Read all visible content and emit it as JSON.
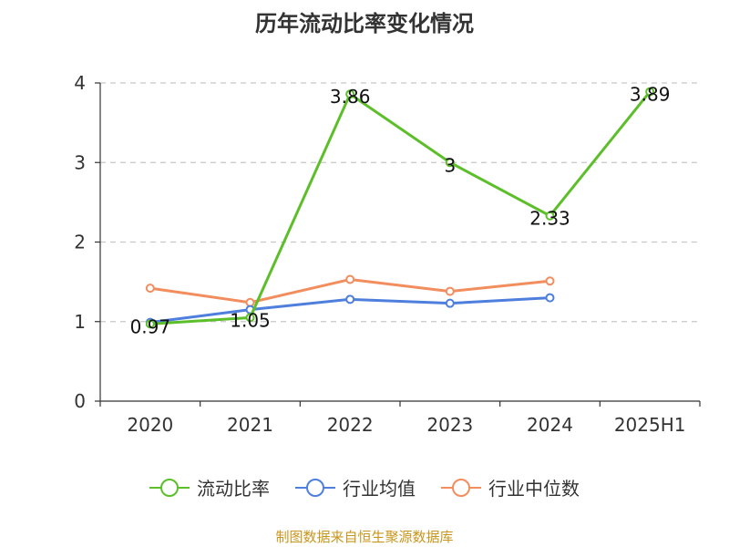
{
  "chart_data": {
    "type": "line",
    "title": "历年流动比率变化情况",
    "categories": [
      "2020",
      "2021",
      "2022",
      "2023",
      "2024",
      "2025H1"
    ],
    "ylim": [
      0,
      4
    ],
    "yticks": [
      "0",
      "1",
      "2",
      "3",
      "4"
    ],
    "grid": true,
    "legend_position": "bottom",
    "series": [
      {
        "name": "流动比率",
        "color": "#5cbf2a",
        "values": [
          0.97,
          1.05,
          3.86,
          3,
          2.33,
          3.89
        ],
        "labels": [
          "0.97",
          "1.05",
          "3.86",
          "3",
          "2.33",
          "3.89"
        ]
      },
      {
        "name": "行业均值",
        "color": "#4e7fdd",
        "values": [
          0.99,
          1.15,
          1.28,
          1.23,
          1.3,
          null
        ]
      },
      {
        "name": "行业中位数",
        "color": "#f28d5e",
        "values": [
          1.42,
          1.24,
          1.53,
          1.38,
          1.51,
          null
        ]
      }
    ]
  },
  "source": "制图数据来自恒生聚源数据库"
}
